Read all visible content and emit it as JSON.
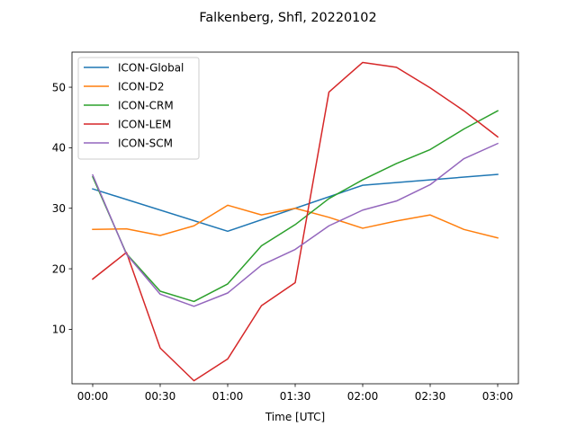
{
  "chart_data": {
    "type": "line",
    "title": "Falkenberg, Shfl, 20220102",
    "xlabel": "Time [UTC]",
    "ylabel": "",
    "x": [
      "00:00",
      "00:15",
      "00:30",
      "00:45",
      "01:00",
      "01:15",
      "01:30",
      "01:45",
      "02:00",
      "02:15",
      "02:30",
      "02:45",
      "03:00"
    ],
    "x_tick_labels": [
      "00:00",
      "00:30",
      "01:00",
      "01:30",
      "02:00",
      "02:30",
      "03:00"
    ],
    "y_ticks": [
      10,
      20,
      30,
      40,
      50
    ],
    "ylim": [
      1.0,
      55.8
    ],
    "grid": false,
    "legend_position": "top-left",
    "series": [
      {
        "name": "ICON-Global",
        "color": "#1f77b4",
        "x": [
          "00:00",
          "01:00",
          "02:00",
          "03:00"
        ],
        "values": [
          33.2,
          26.2,
          33.8,
          35.6
        ]
      },
      {
        "name": "ICON-D2",
        "color": "#ff7f0e",
        "values": [
          26.5,
          26.6,
          25.5,
          27.1,
          30.5,
          28.9,
          30.0,
          28.5,
          26.7,
          27.9,
          28.9,
          26.5,
          25.1
        ]
      },
      {
        "name": "ICON-CRM",
        "color": "#2ca02c",
        "values": [
          35.2,
          22.5,
          16.3,
          14.6,
          17.5,
          23.8,
          27.3,
          31.6,
          34.7,
          37.4,
          39.7,
          43.1,
          46.1
        ]
      },
      {
        "name": "ICON-LEM",
        "color": "#d62728",
        "values": [
          18.3,
          22.7,
          6.9,
          1.5,
          5.1,
          13.9,
          17.7,
          49.2,
          54.1,
          53.3,
          49.9,
          46.1,
          41.8
        ]
      },
      {
        "name": "ICON-SCM",
        "color": "#9467bd",
        "values": [
          35.5,
          22.4,
          15.8,
          13.8,
          16.0,
          20.6,
          23.2,
          27.1,
          29.7,
          31.2,
          33.9,
          38.2,
          40.7
        ]
      }
    ]
  }
}
